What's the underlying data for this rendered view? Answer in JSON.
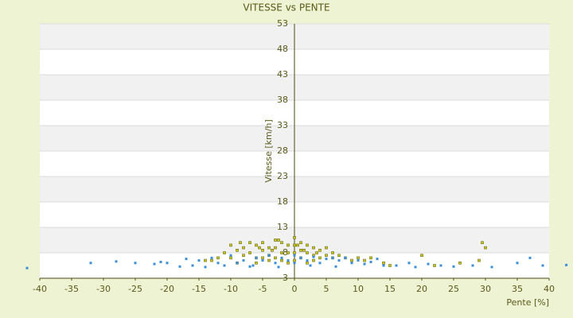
{
  "chart_data": {
    "type": "scatter",
    "title": "VITESSE vs PENTE",
    "x_label": "Pente [%]",
    "y_label": "Vitesse [km/h]",
    "xlim": [
      -40,
      40
    ],
    "xticks": [
      -40,
      -35,
      -30,
      -25,
      -20,
      -15,
      -10,
      -5,
      0,
      5,
      10,
      15,
      20,
      25,
      30,
      35,
      40
    ],
    "ylim": [
      3,
      53
    ],
    "yticks": [
      3,
      8,
      13,
      18,
      23,
      28,
      33,
      38,
      43,
      48,
      53
    ],
    "grid": true,
    "series": [
      {
        "color": "#c9c81e",
        "x": [
          -11,
          -10,
          -10,
          -9,
          -9,
          -8,
          -8,
          -7,
          -7,
          -6,
          -6,
          -6,
          -5,
          -5,
          -5,
          -4,
          -4,
          -4,
          -3,
          -3,
          -3,
          -2,
          -2,
          -2,
          -1,
          -1,
          -1,
          0,
          0,
          0,
          0,
          1,
          1,
          1,
          2,
          2,
          2,
          3,
          3,
          3,
          4,
          4,
          5,
          5,
          6,
          6,
          7,
          8,
          9,
          10,
          11,
          12,
          -12,
          -13,
          14,
          15,
          20,
          22,
          26,
          29.5,
          30,
          29,
          -14,
          -8.5,
          -5.5,
          -2.5,
          0.5,
          1.5,
          3.5,
          -3.5
        ],
        "values": [
          8,
          9.5,
          7,
          8.5,
          6,
          9,
          7.5,
          10,
          8,
          9.5,
          7,
          6,
          10,
          8.5,
          7,
          9,
          7.5,
          6.5,
          10.5,
          9,
          7,
          10,
          8,
          6.5,
          9.5,
          8,
          6,
          11,
          9.5,
          8,
          6.5,
          10,
          8.5,
          7,
          9.5,
          8,
          6,
          9,
          7.5,
          6.5,
          8.5,
          7,
          9,
          7.5,
          8,
          7,
          7.5,
          7,
          6.5,
          7,
          6.5,
          7,
          7,
          6.5,
          6,
          5.5,
          7.5,
          5.5,
          6,
          10,
          9,
          6.5,
          6.5,
          10,
          9,
          10.5,
          9.5,
          8.5,
          8,
          8.5
        ]
      },
      {
        "color": "#3b8fd8",
        "x": [
          -42,
          -32,
          -28,
          -25,
          -22,
          -20,
          -18,
          -16,
          -15,
          -14,
          -13,
          -12,
          -11,
          -10,
          -9,
          -8,
          -7,
          -6,
          -5,
          -4,
          -3,
          -2,
          -1,
          0,
          0,
          1,
          2,
          3,
          4,
          5,
          6,
          7,
          8,
          9,
          10,
          11,
          13,
          14,
          16,
          18,
          19,
          21,
          23,
          25,
          28,
          31,
          35,
          37,
          39,
          42.7,
          -21,
          -17,
          -6.5,
          -2.5,
          2.5,
          6.5,
          12
        ],
        "values": [
          5,
          6,
          6.3,
          6,
          5.8,
          6,
          5.3,
          5.5,
          6.5,
          5.2,
          7,
          6,
          5.5,
          7.5,
          6,
          6.5,
          5.3,
          7,
          6.5,
          7.5,
          6,
          7,
          6.5,
          7.5,
          6,
          7,
          6.5,
          7.2,
          6,
          6.8,
          7,
          6.5,
          7,
          6,
          6.5,
          5.8,
          6.8,
          5.5,
          5.5,
          6,
          5.2,
          5.8,
          5.5,
          5.3,
          5.5,
          5.2,
          6,
          7,
          5.5,
          5.6,
          6.2,
          6.8,
          5.5,
          5.2,
          5.5,
          5.3,
          6.2
        ]
      }
    ]
  }
}
